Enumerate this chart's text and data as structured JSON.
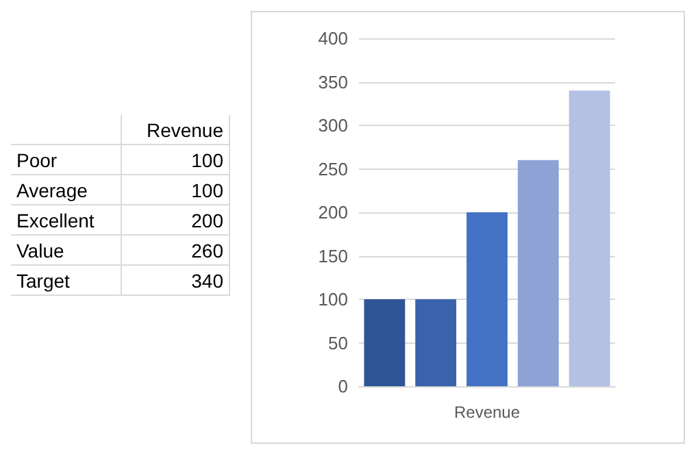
{
  "chart_data": [
    {
      "type": "other",
      "title": "Revenue",
      "categories": [
        "Poor",
        "Average",
        "Excellent",
        "Value",
        "Target"
      ],
      "values": [
        100,
        100,
        200,
        260,
        340
      ],
      "data_labels": true
    },
    {
      "type": "bar",
      "xlabel": "Revenue",
      "categories": [
        null,
        null,
        null,
        null,
        null
      ],
      "values": [
        100,
        100,
        200,
        260,
        340
      ],
      "colors": [
        "#2f5597",
        "#3a62ad",
        "#4472c4",
        "#8fa2d6",
        "#b4c0e4"
      ],
      "ylim": [
        0,
        400
      ],
      "yticks": [
        0,
        50,
        100,
        150,
        200,
        250,
        300,
        350,
        400
      ],
      "grid": "y"
    }
  ]
}
